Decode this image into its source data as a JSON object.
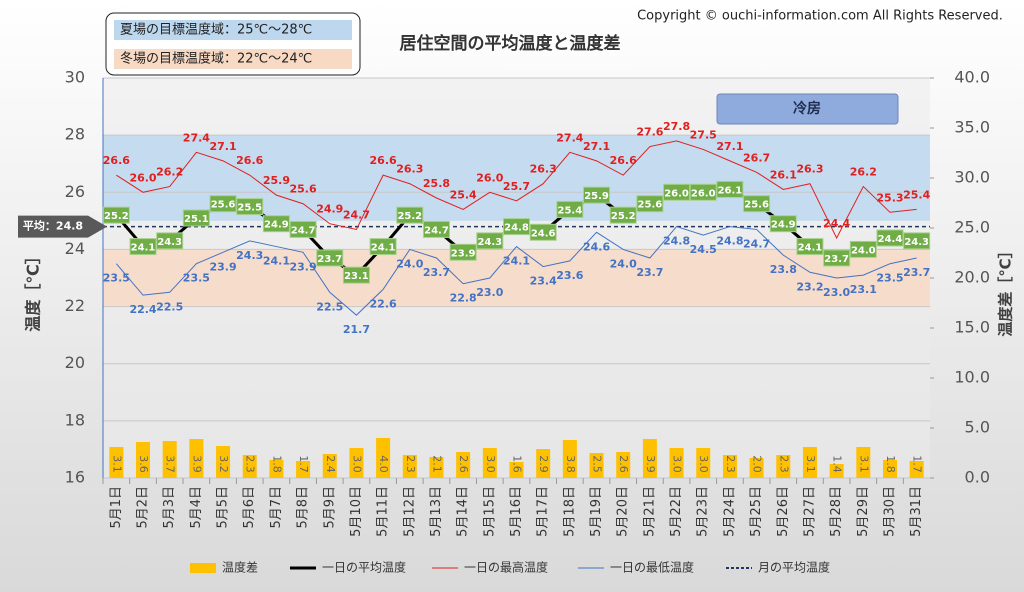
{
  "chart_data": {
    "type": "combo",
    "title": "居住空間の平均温度と温度差",
    "copyright": "Copyright © ouchi-information.com All Rights Reserved.",
    "annotation": "冷房",
    "y_label": "温度［℃］",
    "y2_label": "温度差［℃］",
    "ylim": [
      16,
      30
    ],
    "yticks": [
      16,
      18,
      20,
      22,
      24,
      26,
      28,
      30
    ],
    "y2lim": [
      0,
      40
    ],
    "y2ticks": [
      {
        "value": 0,
        "label": "0.0"
      },
      {
        "value": 5,
        "label": "5.0"
      },
      {
        "value": 10,
        "label": "10.0"
      },
      {
        "value": 15,
        "label": "15.0"
      },
      {
        "value": 20,
        "label": "20.0"
      },
      {
        "value": 25,
        "label": "25.0"
      },
      {
        "value": 30,
        "label": "30.0"
      },
      {
        "value": 35,
        "label": "35.0"
      },
      {
        "value": 40,
        "label": "40.0"
      }
    ],
    "grid": true,
    "bands": [
      {
        "label": "夏場の目標温度域：25℃～28℃",
        "range": [
          25,
          28
        ],
        "color": "#bdd7ee"
      },
      {
        "label": "冬場の目標温度域：22℃～24℃",
        "range": [
          22,
          24
        ],
        "color": "#f8d9c4"
      }
    ],
    "categories": [
      "5月1日",
      "5月2日",
      "5月3日",
      "5月4日",
      "5月5日",
      "5月6日",
      "5月7日",
      "5月8日",
      "5月9日",
      "5月10日",
      "5月11日",
      "5月12日",
      "5月13日",
      "5月14日",
      "5月15日",
      "5月16日",
      "5月17日",
      "5月18日",
      "5月19日",
      "5月20日",
      "5月21日",
      "5月22日",
      "5月23日",
      "5月24日",
      "5月25日",
      "5月26日",
      "5月27日",
      "5月28日",
      "5月29日",
      "5月30日",
      "5月31日"
    ],
    "series": [
      {
        "name": "温度差",
        "type": "bar",
        "axis": "y2",
        "color": "#ffc000",
        "values": [
          3.1,
          3.6,
          3.7,
          3.9,
          3.2,
          2.3,
          1.8,
          1.7,
          2.4,
          3.0,
          4.0,
          2.3,
          2.1,
          2.6,
          3.0,
          1.6,
          2.9,
          3.8,
          2.5,
          2.6,
          3.9,
          3.0,
          3.0,
          2.3,
          2.0,
          2.3,
          3.1,
          1.4,
          3.1,
          1.8,
          1.7
        ],
        "value_labels": [
          "3.1",
          "3.6",
          "3.7",
          "3.9",
          "3.2",
          "2.3",
          "1.8",
          "1.7",
          "2.4",
          "3.0",
          "4.0",
          "2.3",
          "2.1",
          "2.6",
          "3.0",
          "1.6",
          "2.9",
          "3.8",
          "2.5",
          "2.6",
          "3.9",
          "3.0",
          "3.0",
          "2.3",
          "2.0",
          "2.3",
          "3.1",
          "1.4",
          "3.1",
          "1.8",
          "1.7"
        ]
      },
      {
        "name": "一日の平均温度",
        "type": "line",
        "color": "#000000",
        "values": [
          25.2,
          24.1,
          24.3,
          25.1,
          25.6,
          25.5,
          24.9,
          24.7,
          23.7,
          23.1,
          24.1,
          25.2,
          24.7,
          23.9,
          24.3,
          24.8,
          24.6,
          25.4,
          25.9,
          25.2,
          25.6,
          26.0,
          26.0,
          26.1,
          25.6,
          24.9,
          24.1,
          23.7,
          24.0,
          24.4,
          24.3
        ],
        "value_labels": [
          "25.2",
          "24.1",
          "24.3",
          "25.1",
          "25.6",
          "25.5",
          "24.9",
          "24.7",
          "23.7",
          "23.1",
          "24.1",
          "25.2",
          "24.7",
          "23.9",
          "24.3",
          "24.8",
          "24.6",
          "25.4",
          "25.9",
          "25.2",
          "25.6",
          "26.0",
          "26.0",
          "26.1",
          "25.6",
          "24.9",
          "24.1",
          "23.7",
          "24.0",
          "24.4",
          "24.3"
        ]
      },
      {
        "name": "一日の最高温度",
        "type": "line",
        "color": "#e02020",
        "values": [
          26.6,
          26.0,
          26.2,
          27.4,
          27.1,
          26.6,
          25.9,
          25.6,
          24.9,
          24.7,
          26.6,
          26.3,
          25.8,
          25.4,
          26.0,
          25.7,
          26.3,
          27.4,
          27.1,
          26.6,
          27.6,
          27.8,
          27.5,
          27.1,
          26.7,
          26.1,
          26.3,
          24.4,
          26.2,
          25.3,
          25.4
        ],
        "value_labels": [
          "26.6",
          "26.0",
          "26.2",
          "27.4",
          "27.1",
          "26.6",
          "25.9",
          "25.6",
          "24.9",
          "24.7",
          "26.6",
          "26.3",
          "25.8",
          "25.4",
          "26.0",
          "25.7",
          "26.3",
          "27.4",
          "27.1",
          "26.6",
          "27.6",
          "27.8",
          "27.5",
          "27.1",
          "26.7",
          "26.1",
          "26.3",
          "24.4",
          "26.2",
          "25.3",
          "25.4"
        ]
      },
      {
        "name": "一日の最低温度",
        "type": "line",
        "color": "#4472c4",
        "values": [
          23.5,
          22.4,
          22.5,
          23.5,
          23.9,
          24.3,
          24.1,
          23.9,
          22.5,
          21.7,
          22.6,
          24.0,
          23.7,
          22.8,
          23.0,
          24.1,
          23.4,
          23.6,
          24.6,
          24.0,
          23.7,
          24.8,
          24.5,
          24.8,
          24.7,
          23.8,
          23.2,
          23.0,
          23.1,
          23.5,
          23.7
        ],
        "value_labels": [
          "23.5",
          "22.4",
          "22.5",
          "23.5",
          "23.9",
          "24.3",
          "24.1",
          "23.9",
          "22.5",
          "21.7",
          "22.6",
          "24.0",
          "23.7",
          "22.8",
          "23.0",
          "24.1",
          "23.4",
          "23.6",
          "24.6",
          "24.0",
          "23.7",
          "24.8",
          "24.5",
          "24.8",
          "24.7",
          "23.8",
          "23.2",
          "23.0",
          "23.1",
          "23.5",
          "23.7"
        ]
      }
    ],
    "reference_line": {
      "name": "月の平均温度",
      "value": 24.8,
      "label": "平均：24.8",
      "color": "#1f3864"
    }
  }
}
